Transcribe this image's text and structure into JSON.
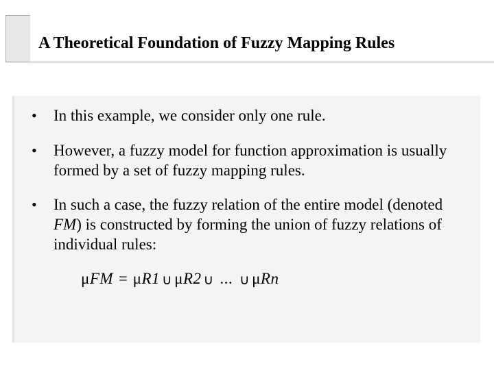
{
  "title": "A Theoretical Foundation of Fuzzy Mapping Rules",
  "bullets": [
    {
      "text": "In this example, we consider only one rule."
    },
    {
      "text": "However, a fuzzy model for function approximation is usually formed by a set of fuzzy mapping rules."
    },
    {
      "text_prefix": "In such a case, the fuzzy relation of the entire model (denoted ",
      "text_italic": "FM",
      "text_suffix": ") is constructed by forming the union of fuzzy relations of individual rules:"
    }
  ],
  "formula": {
    "mu": "μ",
    "fm": "FM",
    "eq": " = ",
    "r1": "R1",
    "r2": "R2",
    "dots": " ... ",
    "rn": "Rn",
    "union": "∪"
  },
  "colors": {
    "background": "#ffffff",
    "content_bg": "#f4f4f4",
    "text": "#000000",
    "border": "#999999"
  }
}
